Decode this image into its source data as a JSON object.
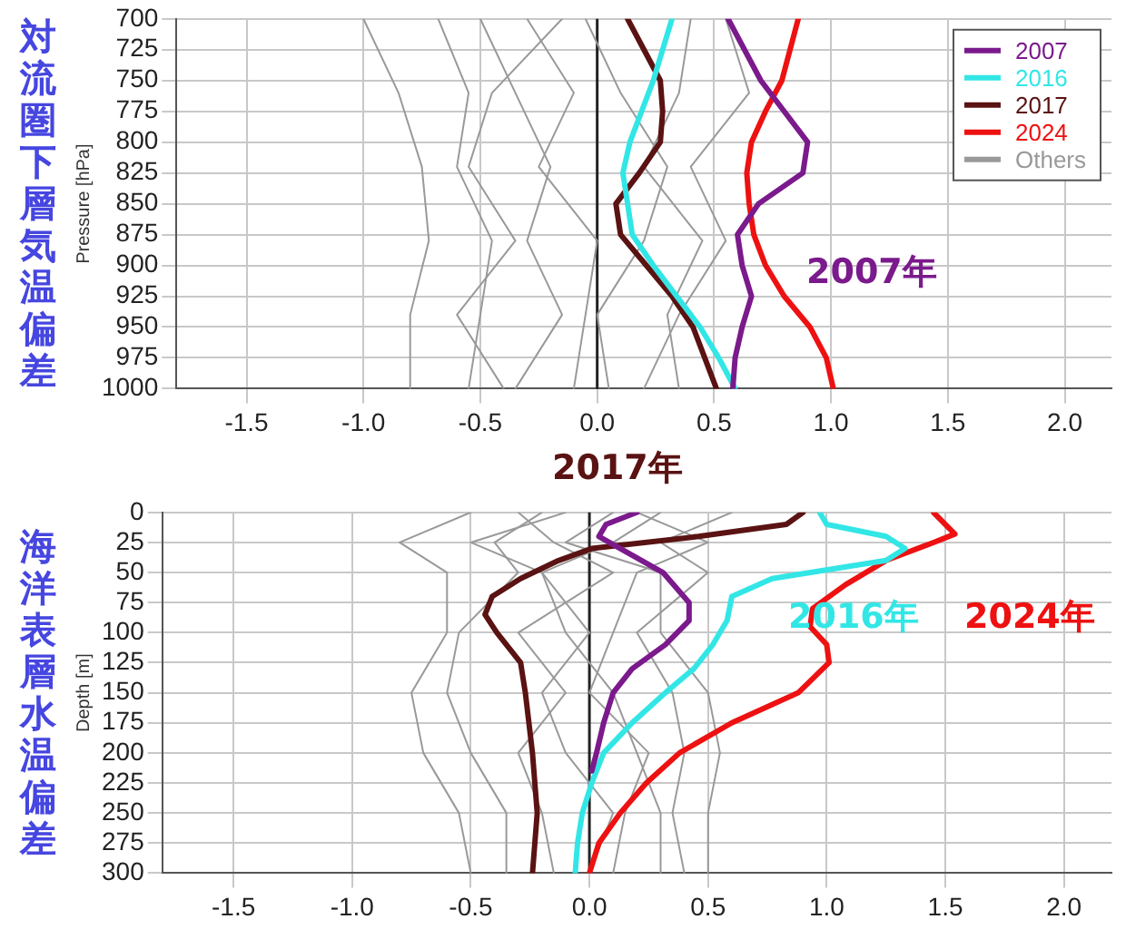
{
  "chart_data": [
    {
      "type": "line",
      "title": "対流圏下層気温偏差",
      "ylabel": "Pressure [hPa]",
      "xlim": [
        -1.8,
        2.2
      ],
      "xticks": [
        -1.5,
        {
          "value": -1.0,
          "label": "-1.0"
        },
        -0.5,
        {
          "value": 0,
          "label": "0.0"
        },
        0.5,
        {
          "value": 1.0,
          "label": "1.0"
        },
        1.5,
        {
          "value": 2.0,
          "label": "2.0"
        }
      ],
      "ylim": [
        1000,
        700
      ],
      "yticks": [
        700,
        725,
        750,
        775,
        800,
        825,
        850,
        875,
        900,
        925,
        950,
        975,
        1000
      ],
      "grid": true,
      "legend": "top right",
      "marker": "none",
      "ref_lines": [
        {
          "axis": "x",
          "value": 0
        }
      ],
      "annotations": [
        "2007年",
        "2017年"
      ],
      "series": [
        {
          "name": "Others",
          "color": "#999999",
          "x": [
            -1.0,
            -0.85,
            -0.75,
            -0.72,
            -0.8,
            -0.8
          ],
          "values": [
            700,
            760,
            820,
            880,
            940,
            1000
          ]
        },
        {
          "color": "#999999",
          "x": [
            -0.68,
            -0.55,
            -0.6,
            -0.45,
            -0.5,
            -0.55
          ],
          "values": [
            700,
            760,
            820,
            880,
            940,
            1000
          ]
        },
        {
          "color": "#999999",
          "x": [
            -0.5,
            -0.35,
            -0.2,
            -0.3,
            -0.15,
            -0.35
          ],
          "values": [
            700,
            760,
            820,
            880,
            940,
            1000
          ]
        },
        {
          "color": "#999999",
          "x": [
            -0.3,
            -0.1,
            -0.25,
            0.0,
            -0.05,
            -0.1
          ],
          "values": [
            700,
            760,
            820,
            880,
            940,
            1000
          ]
        },
        {
          "color": "#999999",
          "x": [
            -0.05,
            0.1,
            0.3,
            0.2,
            0.0,
            0.05
          ],
          "values": [
            700,
            760,
            820,
            880,
            940,
            1000
          ]
        },
        {
          "color": "#999999",
          "x": [
            0.4,
            0.35,
            0.2,
            0.45,
            0.3,
            0.35
          ],
          "values": [
            700,
            760,
            820,
            880,
            940,
            1000
          ]
        },
        {
          "color": "#999999",
          "x": [
            0.55,
            0.65,
            0.4,
            0.55,
            0.35,
            0.2
          ],
          "values": [
            700,
            760,
            820,
            880,
            940,
            1000
          ]
        },
        {
          "color": "#999999",
          "x": [
            -0.15,
            -0.45,
            -0.55,
            -0.35,
            -0.6,
            -0.4
          ],
          "values": [
            700,
            760,
            820,
            880,
            940,
            1000
          ]
        },
        {
          "name": "2007",
          "color": "#7b1a8c",
          "x": [
            0.56,
            0.7,
            0.8,
            0.9,
            0.88,
            0.69,
            0.6,
            0.62,
            0.66,
            0.62,
            0.59,
            0.58
          ],
          "values": [
            700,
            750,
            775,
            800,
            825,
            850,
            875,
            900,
            925,
            950,
            975,
            1000
          ]
        },
        {
          "name": "2016",
          "color": "#33e6e6",
          "x": [
            0.32,
            0.24,
            0.14,
            0.11,
            0.13,
            0.15,
            0.24,
            0.34,
            0.44,
            0.52,
            0.59
          ],
          "values": [
            700,
            750,
            800,
            825,
            850,
            875,
            900,
            925,
            950,
            975,
            1000
          ]
        },
        {
          "name": "2017",
          "color": "#5a1212",
          "x": [
            0.13,
            0.2,
            0.27,
            0.28,
            0.27,
            0.18,
            0.08,
            0.1,
            0.21,
            0.32,
            0.41,
            0.46,
            0.51
          ],
          "values": [
            700,
            725,
            750,
            775,
            800,
            825,
            850,
            875,
            900,
            925,
            950,
            975,
            1000
          ]
        },
        {
          "name": "2024",
          "color": "#ee1111",
          "x": [
            0.86,
            0.79,
            0.72,
            0.66,
            0.64,
            0.65,
            0.67,
            0.72,
            0.8,
            0.91,
            0.98,
            1.01
          ],
          "values": [
            700,
            750,
            775,
            800,
            825,
            850,
            875,
            900,
            925,
            950,
            975,
            1000
          ]
        }
      ]
    },
    {
      "type": "line",
      "title": "海洋表層水温偏差",
      "ylabel": "Depth [m]",
      "xlim": [
        -1.8,
        2.2
      ],
      "xticks": [
        -1.5,
        {
          "value": -1.0,
          "label": "-1.0"
        },
        -0.5,
        {
          "value": 0,
          "label": "0.0"
        },
        0.5,
        {
          "value": 1.0,
          "label": "1.0"
        },
        1.5,
        {
          "value": 2.0,
          "label": "2.0"
        }
      ],
      "ylim": [
        300,
        0
      ],
      "yticks": [
        0,
        25,
        50,
        75,
        100,
        125,
        150,
        175,
        200,
        225,
        250,
        275,
        300
      ],
      "grid": true,
      "marker": "none",
      "ref_lines": [
        {
          "axis": "x",
          "value": 0
        }
      ],
      "annotations": [
        "2016年",
        "2024年"
      ],
      "series": [
        {
          "color": "#999999",
          "x": [
            -0.5,
            -0.8,
            -0.6,
            -0.6,
            -0.75,
            -0.7,
            -0.55,
            -0.5
          ],
          "values": [
            0,
            25,
            50,
            100,
            150,
            200,
            250,
            300
          ]
        },
        {
          "color": "#999999",
          "x": [
            -0.2,
            -0.4,
            -0.3,
            -0.55,
            -0.6,
            -0.5,
            -0.35,
            -0.35
          ],
          "values": [
            0,
            25,
            50,
            100,
            150,
            200,
            250,
            300
          ]
        },
        {
          "color": "#999999",
          "x": [
            0.1,
            -0.1,
            0.3,
            0.3,
            0.5,
            0.55,
            0.5,
            0.5
          ],
          "values": [
            0,
            25,
            50,
            100,
            150,
            200,
            250,
            300
          ]
        },
        {
          "color": "#999999",
          "x": [
            0.3,
            0.1,
            -0.2,
            -0.1,
            0.1,
            0.2,
            0.3,
            0.3
          ],
          "values": [
            0,
            25,
            50,
            100,
            150,
            200,
            250,
            300
          ]
        },
        {
          "color": "#999999",
          "x": [
            -0.1,
            -0.5,
            -0.2,
            0.0,
            -0.2,
            -0.1,
            0.1,
            0.0
          ],
          "values": [
            0,
            25,
            50,
            100,
            150,
            200,
            250,
            300
          ]
        },
        {
          "color": "#999999",
          "x": [
            0.6,
            0.3,
            0.5,
            0.2,
            0.35,
            0.4,
            0.35,
            0.4
          ],
          "values": [
            0,
            25,
            50,
            100,
            150,
            200,
            250,
            300
          ]
        },
        {
          "color": "#999999",
          "x": [
            -0.3,
            -0.15,
            0.1,
            -0.3,
            -0.1,
            -0.3,
            -0.2,
            -0.15
          ],
          "values": [
            0,
            25,
            50,
            100,
            150,
            200,
            250,
            300
          ]
        },
        {
          "color": "#999999",
          "x": [
            0.2,
            0.5,
            0.2,
            0.1,
            0.0,
            0.25,
            0.15,
            0.1
          ],
          "values": [
            0,
            25,
            50,
            100,
            150,
            200,
            250,
            300
          ]
        },
        {
          "name": "2007",
          "color": "#7b1a8c",
          "x": [
            0.2,
            0.07,
            0.04,
            0.13,
            0.31,
            0.42,
            0.42,
            0.32,
            0.18,
            0.1,
            0.06,
            0.03,
            0.01
          ],
          "values": [
            0,
            10,
            20,
            30,
            50,
            75,
            90,
            110,
            130,
            150,
            175,
            200,
            215
          ]
        },
        {
          "name": "2016",
          "color": "#33e6e6",
          "x": [
            0.97,
            1.0,
            1.25,
            1.33,
            1.25,
            0.77,
            0.6,
            0.58,
            0.52,
            0.44,
            0.32,
            0.18,
            0.06,
            0.01,
            -0.03,
            -0.05,
            -0.06
          ],
          "values": [
            0,
            10,
            20,
            30,
            40,
            55,
            70,
            90,
            110,
            130,
            150,
            175,
            200,
            225,
            250,
            275,
            300
          ]
        },
        {
          "name": "2017",
          "color": "#5a1212",
          "x": [
            0.9,
            0.83,
            0.46,
            0.01,
            -0.13,
            -0.29,
            -0.41,
            -0.44,
            -0.39,
            -0.29,
            -0.27,
            -0.24,
            -0.22,
            -0.24
          ],
          "values": [
            0,
            10,
            20,
            30,
            40,
            55,
            70,
            85,
            100,
            125,
            150,
            200,
            250,
            300
          ]
        },
        {
          "name": "2024",
          "color": "#ee1111",
          "x": [
            1.45,
            1.5,
            1.54,
            1.45,
            1.25,
            1.08,
            0.94,
            0.93,
            1.0,
            1.01,
            0.88,
            0.6,
            0.38,
            0.24,
            0.13,
            0.04,
            0.0
          ],
          "values": [
            0,
            10,
            18,
            25,
            40,
            60,
            80,
            95,
            110,
            125,
            150,
            175,
            200,
            225,
            250,
            275,
            300
          ]
        }
      ]
    }
  ]
}
